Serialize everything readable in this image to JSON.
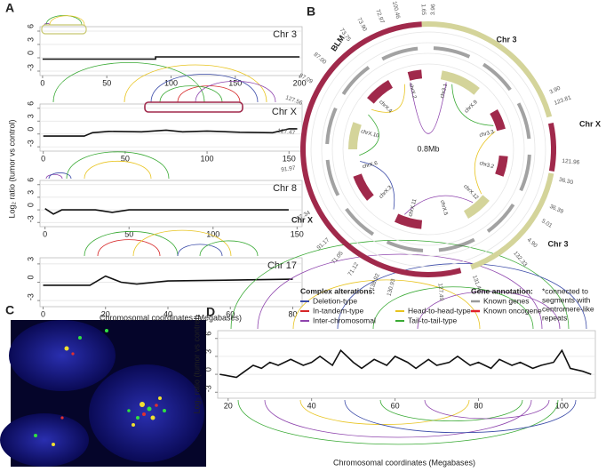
{
  "panel_labels": [
    "A",
    "B",
    "C",
    "D"
  ],
  "chart_data": [
    {
      "type": "line",
      "title": "Chr 3",
      "ylabel": "Log₂ ratio (tumor vs control)",
      "color": "#111111",
      "x": [
        0,
        88,
        88,
        200
      ],
      "values": [
        -0.3,
        -0.3,
        0.2,
        0.2
      ],
      "xlim": [
        -2,
        202
      ],
      "xticks": [
        0,
        50,
        100,
        150,
        200
      ],
      "ylim": [
        -4,
        7
      ],
      "yticks": [
        -3,
        0,
        3,
        6
      ],
      "grid": true
    },
    {
      "type": "line",
      "title": "Chr X",
      "color": "#111111",
      "x": [
        0,
        25,
        30,
        40,
        60,
        75,
        85,
        100,
        120,
        140,
        150,
        155
      ],
      "values": [
        -0.5,
        -0.5,
        0.3,
        0.6,
        0.5,
        0.9,
        0.5,
        0.7,
        0.4,
        0.3,
        1.2,
        1.2
      ],
      "xlim": [
        -2,
        158
      ],
      "xticks": [
        0,
        50,
        100,
        150
      ],
      "ylim": [
        -4,
        7
      ],
      "yticks": [
        -3,
        0,
        3,
        6
      ],
      "grid": true
    },
    {
      "type": "line",
      "title": "Chr 8",
      "color": "#111111",
      "x": [
        0,
        5,
        10,
        30,
        40,
        50,
        145
      ],
      "values": [
        0.3,
        -1,
        0,
        0,
        -0.6,
        0,
        0
      ],
      "xlim": [
        -3,
        153
      ],
      "xticks": [
        0,
        50,
        100,
        150
      ],
      "ylim": [
        -4,
        7
      ],
      "yticks": [
        -3,
        0,
        3,
        6
      ],
      "grid": true
    },
    {
      "type": "line",
      "title": "Chr 17",
      "xlabel": "Chromosomal coordinates (Megabases)",
      "color": "#111111",
      "x": [
        0,
        15,
        20,
        25,
        30,
        40,
        80
      ],
      "values": [
        -0.5,
        -0.5,
        1,
        0,
        -0.3,
        0.2,
        0.5
      ],
      "xlim": [
        -1,
        83
      ],
      "xticks": [
        0,
        20,
        40,
        60,
        80
      ],
      "ylim": [
        -4,
        4
      ],
      "yticks": [
        -3,
        0,
        3
      ],
      "grid": true
    },
    {
      "type": "line",
      "ylabel": "Log₂ ratio (tumor vs control)",
      "xlabel": "Chromosomal coordinates (Megabases)",
      "color": "#111111",
      "x": [
        18,
        22,
        24,
        26,
        28,
        30,
        32,
        35,
        38,
        40,
        42,
        45,
        47,
        50,
        52,
        55,
        58,
        60,
        63,
        65,
        68,
        70,
        73,
        75,
        78,
        80,
        83,
        85,
        88,
        90,
        93,
        95,
        98,
        100,
        102,
        105,
        107
      ],
      "values": [
        0,
        -0.5,
        0.5,
        1.5,
        1,
        2,
        1.5,
        2.5,
        1.5,
        2,
        3,
        1.5,
        4,
        2,
        1,
        2.5,
        1.5,
        3,
        2,
        1,
        2.5,
        1.5,
        2,
        3,
        1.5,
        2,
        1,
        2.5,
        1.5,
        2,
        1,
        1.5,
        2,
        4,
        1,
        0.5,
        0
      ],
      "xlim": [
        17.5,
        108
      ],
      "xticks": [
        20,
        40,
        60,
        80,
        100
      ],
      "ylim": [
        -4,
        7.3
      ],
      "yticks": [
        -3,
        0,
        3,
        6
      ],
      "grid": true
    }
  ],
  "circos": {
    "center_label": "0.8Mb",
    "chromosome_labels": [
      "Chr 3",
      "Chr X",
      "Chr 3",
      "Chr X"
    ],
    "tick_labels": [
      "3.96",
      "1.65",
      "100.46",
      "72.97",
      "73.90",
      "73.75",
      "87.00",
      "87.09",
      "127.56",
      "127.47",
      "91.97",
      "97.34",
      "91.17",
      "71.05",
      "71.12",
      "138.92",
      "130.93",
      "127.49",
      "131.46",
      "132.33",
      "4.90",
      "5.01",
      "36.39",
      "36.30",
      "121.96",
      "123.81",
      "3.90"
    ],
    "segment_labels": [
      "chr3.1",
      "chrX.9",
      "chr3.3",
      "chr3.2",
      "chrX.12",
      "chrX.5",
      "chrX.11",
      "chrX.3",
      "chrX.6",
      "chrX.10",
      "chrX.4",
      "chrX.2"
    ],
    "gene_labels": [
      "BLM"
    ]
  },
  "legend": {
    "alterations_title": "Complex alterations:",
    "alterations": [
      {
        "name": "Deletion-type",
        "color": "#3b4ba8"
      },
      {
        "name": "In-tandem-type",
        "color": "#d62728"
      },
      {
        "name": "Inter-chromosomal",
        "color": "#8e44ad"
      },
      {
        "name": "Head-to-head-type",
        "color": "#e8c420"
      },
      {
        "name": "Tail-to-tail-type",
        "color": "#3aaa35"
      }
    ],
    "genes_title": "Gene annotation:",
    "genes": [
      {
        "name": "Known genes",
        "color": "#999999"
      },
      {
        "name": "Known oncogene",
        "color": "#e0202a"
      }
    ],
    "note": [
      "*connected to",
      "segments with",
      "centromere-like",
      "repeats"
    ]
  }
}
